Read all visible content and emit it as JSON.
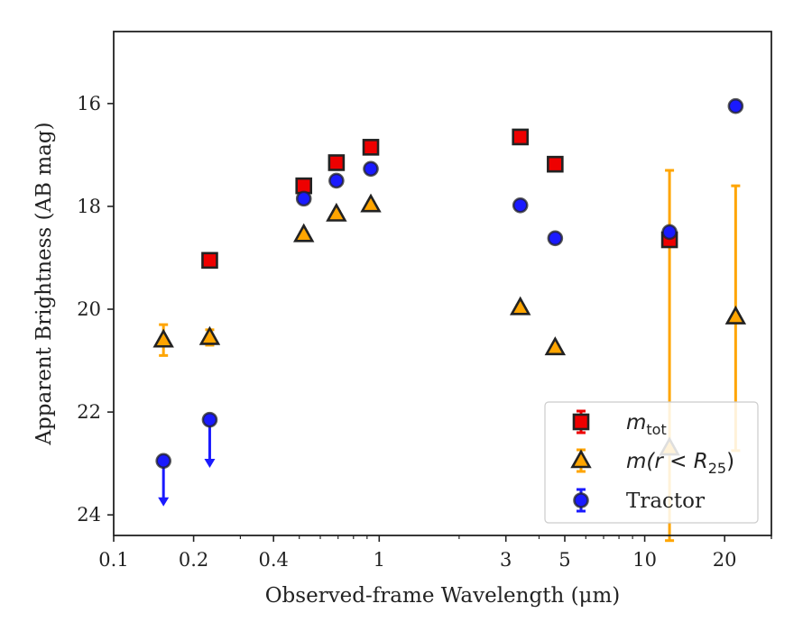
{
  "chart_data": {
    "type": "scatter",
    "xlabel": "Observed-frame Wavelength (μm)",
    "ylabel": "Apparent Brightness (AB mag)",
    "xscale": "log",
    "xlim": [
      0.1,
      30
    ],
    "ylim": [
      24.4,
      14.6
    ],
    "y_inverted": true,
    "xticks": [
      {
        "value": 0.1,
        "label": "0.1"
      },
      {
        "value": 0.2,
        "label": "0.2"
      },
      {
        "value": 0.4,
        "label": "0.4"
      },
      {
        "value": 1,
        "label": "1"
      },
      {
        "value": 3,
        "label": "3"
      },
      {
        "value": 5,
        "label": "5"
      },
      {
        "value": 10,
        "label": "10"
      },
      {
        "value": 20,
        "label": "20"
      }
    ],
    "yticks": [
      {
        "value": 16,
        "label": "16"
      },
      {
        "value": 18,
        "label": "18"
      },
      {
        "value": 20,
        "label": "20"
      },
      {
        "value": 22,
        "label": "22"
      },
      {
        "value": 24,
        "label": "24"
      }
    ],
    "legend_position": "lower-right",
    "series": [
      {
        "name_main": "m",
        "name_sub": "tot",
        "marker": "square",
        "color": "#ee0000",
        "points": [
          {
            "x": 0.23,
            "y": 19.05,
            "err": 0.06
          },
          {
            "x": 0.52,
            "y": 17.6,
            "err": 0.06
          },
          {
            "x": 0.69,
            "y": 17.15,
            "err": 0.05
          },
          {
            "x": 0.93,
            "y": 16.85,
            "err": 0.05
          },
          {
            "x": 3.4,
            "y": 16.65,
            "err": 0.05
          },
          {
            "x": 4.6,
            "y": 17.18,
            "err": 0.05
          },
          {
            "x": 12.4,
            "y": 18.65,
            "err": 0.1
          }
        ]
      },
      {
        "name_main": "m(r < R",
        "name_sub": "25",
        "name_tail": ")",
        "marker": "triangle",
        "color": "#ffa500",
        "points": [
          {
            "x": 0.154,
            "y": 20.6,
            "err": 0.3
          },
          {
            "x": 0.23,
            "y": 20.55,
            "err": 0.15
          },
          {
            "x": 0.52,
            "y": 18.55,
            "err": 0.05
          },
          {
            "x": 0.69,
            "y": 18.15,
            "err": 0.05
          },
          {
            "x": 0.93,
            "y": 17.97,
            "err": 0.05
          },
          {
            "x": 3.4,
            "y": 19.97,
            "err": 0.05
          },
          {
            "x": 4.6,
            "y": 20.75,
            "err": 0.05
          },
          {
            "x": 12.4,
            "y": 22.7,
            "err_low": 5.4,
            "err_high": 1.8
          },
          {
            "x": 22.0,
            "y": 20.15,
            "err_low": 2.55,
            "err_high": 2.6
          }
        ]
      },
      {
        "name_main": "Tractor",
        "marker": "circle",
        "color": "#1a1aff",
        "points": [
          {
            "x": 0.154,
            "y": 22.95,
            "upper_limit": true,
            "arrow_to": 23.8
          },
          {
            "x": 0.23,
            "y": 22.15,
            "upper_limit": true,
            "arrow_to": 23.05
          },
          {
            "x": 0.52,
            "y": 17.85,
            "err": 0.05
          },
          {
            "x": 0.69,
            "y": 17.5,
            "err": 0.05
          },
          {
            "x": 0.93,
            "y": 17.27,
            "err": 0.05
          },
          {
            "x": 3.4,
            "y": 17.98,
            "err": 0.05
          },
          {
            "x": 4.6,
            "y": 18.62,
            "err": 0.05
          },
          {
            "x": 12.4,
            "y": 18.5,
            "err": 0.05
          },
          {
            "x": 22.0,
            "y": 16.05,
            "err": 0.05
          }
        ]
      }
    ]
  }
}
